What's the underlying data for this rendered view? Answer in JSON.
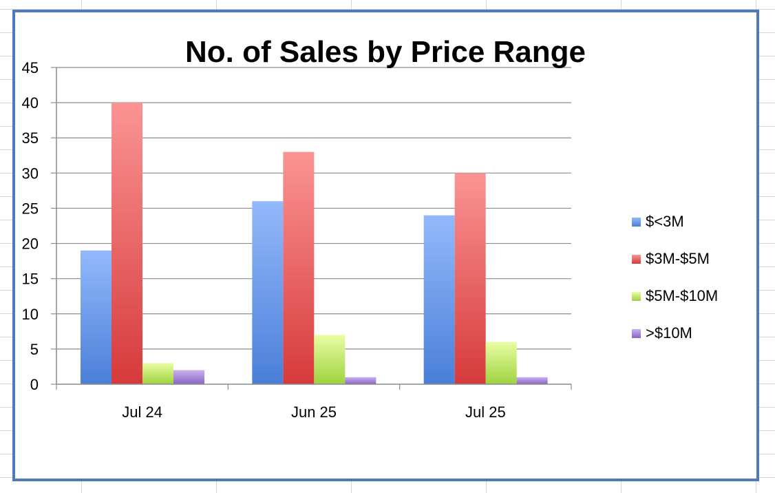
{
  "chart_data": {
    "type": "bar",
    "title": "No. of Sales by Price Range",
    "categories": [
      "Jul 24",
      "Jun 25",
      "Jul 25"
    ],
    "series": [
      {
        "name": "$<3M",
        "values": [
          19,
          26,
          24
        ],
        "color": "#4a7fd8",
        "color_light": "#93b9fb"
      },
      {
        "name": "$3M-$5M",
        "values": [
          40,
          33,
          30
        ],
        "color": "#d63a3a",
        "color_light": "#fb9494"
      },
      {
        "name": "$5M-$10M",
        "values": [
          3,
          7,
          6
        ],
        "color": "#9ed23f",
        "color_light": "#e8fea3"
      },
      {
        "name": ">$10M",
        "values": [
          2,
          1,
          1
        ],
        "color": "#8a64c3",
        "color_light": "#c8b0ee"
      }
    ],
    "yticks": [
      0,
      5,
      10,
      15,
      20,
      25,
      30,
      35,
      40,
      45
    ],
    "ylim": [
      0,
      45
    ],
    "grid": true,
    "legend": "right",
    "xlabel": "",
    "ylabel": ""
  },
  "colors": {
    "frame_border": "#4f79bd",
    "gridline": "#8c8c8c",
    "axis": "#8c8c8c",
    "sheet_grid": "#d6d6d6"
  }
}
